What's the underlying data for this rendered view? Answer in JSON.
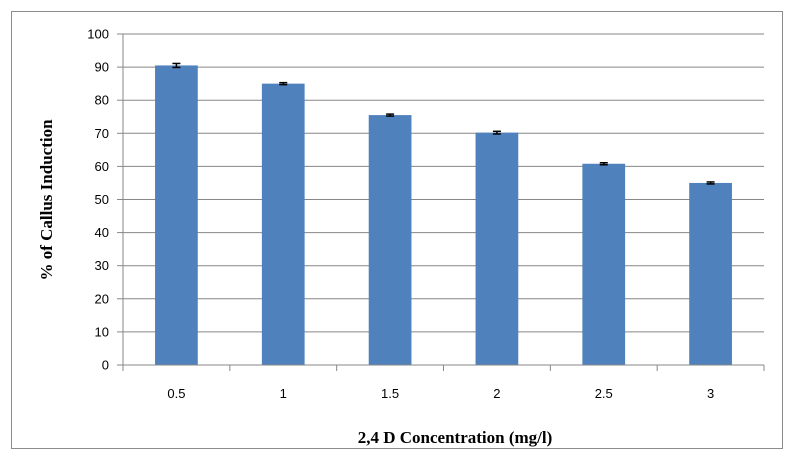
{
  "chart_data": {
    "type": "bar",
    "title": "",
    "xlabel": "2,4 D Concentration (mg/l)",
    "ylabel": "% of Callus Induction",
    "categories": [
      "0.5",
      "1",
      "1.5",
      "2",
      "2.5",
      "3"
    ],
    "values": [
      90.5,
      85,
      75.5,
      70.2,
      60.8,
      55
    ],
    "errors": [
      0.6,
      0.3,
      0.3,
      0.4,
      0.3,
      0.3
    ],
    "ylim": [
      0,
      100
    ],
    "yticks": [
      "0",
      "10",
      "20",
      "30",
      "40",
      "50",
      "60",
      "70",
      "80",
      "90",
      "100"
    ],
    "grid": true,
    "legend": "none",
    "colors": {
      "bar": "#4f81bd",
      "grid": "#878787",
      "axis": "#878787",
      "error": "#000000"
    }
  }
}
